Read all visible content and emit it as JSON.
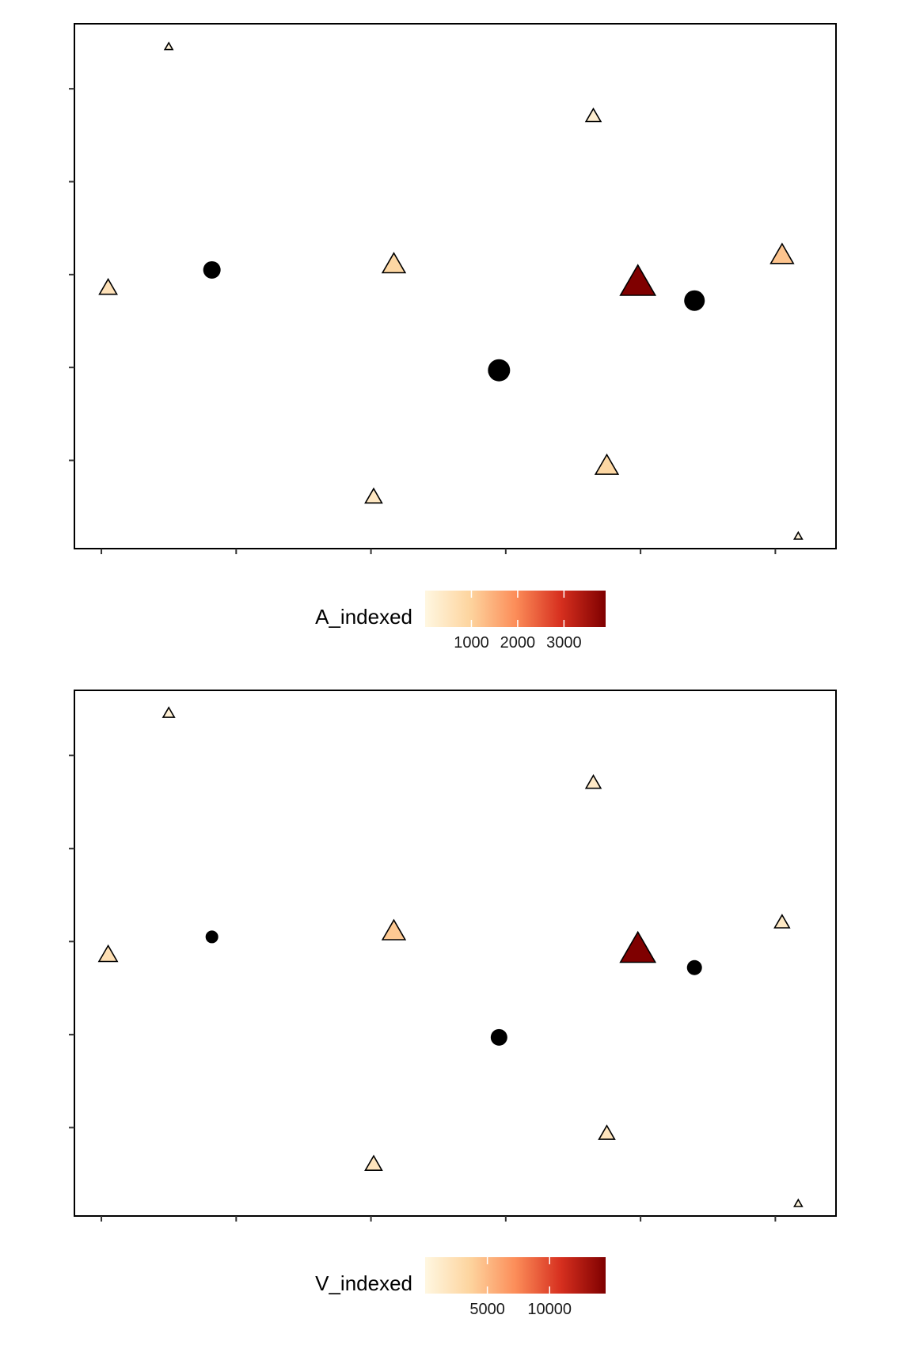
{
  "chart_data": [
    {
      "type": "scatter",
      "title": "",
      "xlabel": "",
      "ylabel": "",
      "xlim": [
        -0.2,
        5.45
      ],
      "ylim": [
        -0.95,
        4.7
      ],
      "x_ticks": [
        0,
        1,
        2,
        3,
        4,
        5
      ],
      "y_ticks": [
        0,
        1,
        2,
        3,
        4
      ],
      "tick_labels_shown": false,
      "grid": false,
      "legend": {
        "position": "bottom",
        "title": "A_indexed",
        "colorbar_range": [
          0,
          3900
        ],
        "colorbar_ticks": [
          1000,
          2000,
          3000
        ],
        "colorbar_tick_labels": [
          "1000",
          "2000",
          "3000"
        ],
        "palette": [
          "#fff7e1",
          "#fdd49e",
          "#fc8d59",
          "#d7301f",
          "#7f0000"
        ]
      },
      "points": [
        {
          "x": 0.05,
          "y": 1.85,
          "shape": "triangle",
          "value": 600,
          "size": 1.0
        },
        {
          "x": 0.5,
          "y": 4.45,
          "shape": "triangle",
          "value": 100,
          "size": 0.45
        },
        {
          "x": 0.82,
          "y": 2.05,
          "shape": "circle",
          "value": null,
          "size": 1.0
        },
        {
          "x": 2.02,
          "y": -0.4,
          "shape": "triangle",
          "value": 450,
          "size": 0.95
        },
        {
          "x": 2.17,
          "y": 2.1,
          "shape": "triangle",
          "value": 900,
          "size": 1.3
        },
        {
          "x": 2.95,
          "y": 0.97,
          "shape": "circle",
          "value": null,
          "size": 1.3
        },
        {
          "x": 3.65,
          "y": 3.7,
          "shape": "triangle",
          "value": 250,
          "size": 0.85
        },
        {
          "x": 3.75,
          "y": -0.07,
          "shape": "triangle",
          "value": 900,
          "size": 1.3
        },
        {
          "x": 3.98,
          "y": 1.9,
          "shape": "triangle",
          "value": 3900,
          "size": 2.0
        },
        {
          "x": 4.4,
          "y": 1.72,
          "shape": "circle",
          "value": null,
          "size": 1.2
        },
        {
          "x": 5.05,
          "y": 2.2,
          "shape": "triangle",
          "value": 1200,
          "size": 1.3
        },
        {
          "x": 5.17,
          "y": -0.82,
          "shape": "triangle",
          "value": 100,
          "size": 0.45
        }
      ]
    },
    {
      "type": "scatter",
      "title": "",
      "xlabel": "",
      "ylabel": "",
      "xlim": [
        -0.2,
        5.45
      ],
      "ylim": [
        -0.95,
        4.7
      ],
      "x_ticks": [
        0,
        1,
        2,
        3,
        4,
        5
      ],
      "y_ticks": [
        0,
        1,
        2,
        3,
        4
      ],
      "tick_labels_shown": false,
      "grid": false,
      "legend": {
        "position": "bottom",
        "title": "V_indexed",
        "colorbar_range": [
          0,
          14500
        ],
        "colorbar_ticks": [
          5000,
          10000
        ],
        "colorbar_tick_labels": [
          "5000",
          "10000"
        ],
        "palette": [
          "#fff7e1",
          "#fdd49e",
          "#fc8d59",
          "#d7301f",
          "#7f0000"
        ]
      },
      "points": [
        {
          "x": 0.05,
          "y": 1.85,
          "shape": "triangle",
          "value": 2500,
          "size": 1.05
        },
        {
          "x": 0.5,
          "y": 4.45,
          "shape": "triangle",
          "value": 700,
          "size": 0.65
        },
        {
          "x": 0.82,
          "y": 2.05,
          "shape": "circle",
          "value": null,
          "size": 0.7
        },
        {
          "x": 2.02,
          "y": -0.4,
          "shape": "triangle",
          "value": 2000,
          "size": 0.95
        },
        {
          "x": 2.17,
          "y": 2.1,
          "shape": "triangle",
          "value": 4200,
          "size": 1.3
        },
        {
          "x": 2.95,
          "y": 0.97,
          "shape": "circle",
          "value": null,
          "size": 0.95
        },
        {
          "x": 3.65,
          "y": 3.7,
          "shape": "triangle",
          "value": 1400,
          "size": 0.85
        },
        {
          "x": 3.75,
          "y": -0.07,
          "shape": "triangle",
          "value": 2000,
          "size": 0.9
        },
        {
          "x": 3.98,
          "y": 1.9,
          "shape": "triangle",
          "value": 14500,
          "size": 2.0
        },
        {
          "x": 4.4,
          "y": 1.72,
          "shape": "circle",
          "value": null,
          "size": 0.85
        },
        {
          "x": 5.05,
          "y": 2.2,
          "shape": "triangle",
          "value": 1500,
          "size": 0.85
        },
        {
          "x": 5.17,
          "y": -0.82,
          "shape": "triangle",
          "value": 300,
          "size": 0.45
        }
      ]
    }
  ]
}
